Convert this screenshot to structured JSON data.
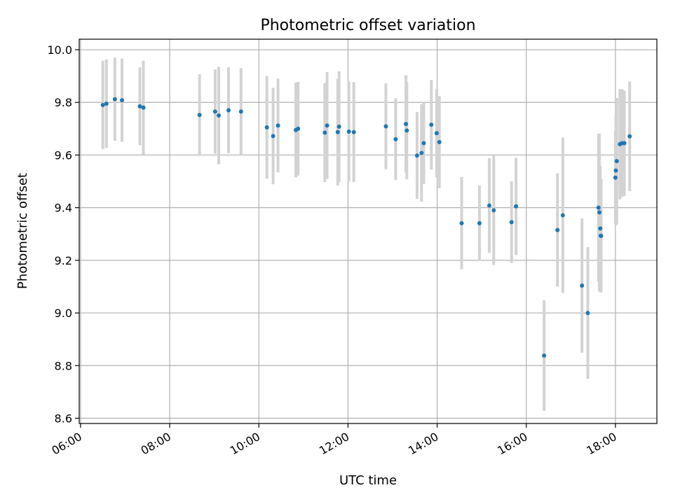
{
  "chart_data": {
    "type": "scatter",
    "title": "Photometric offset variation",
    "xlabel": "UTC time",
    "ylabel": "Photometric offset",
    "xlim": [
      5.97,
      18.93
    ],
    "ylim": [
      8.58,
      10.04
    ],
    "xticks": [
      6,
      8,
      10,
      12,
      14,
      16,
      18
    ],
    "xtick_labels": [
      "06:00",
      "08:00",
      "10:00",
      "12:00",
      "14:00",
      "16:00",
      "18:00"
    ],
    "yticks": [
      8.6,
      8.8,
      9.0,
      9.2,
      9.4,
      9.6,
      9.8,
      10.0
    ],
    "ytick_labels": [
      "8.6",
      "8.8",
      "9.0",
      "9.2",
      "9.4",
      "9.6",
      "9.8",
      "10.0"
    ],
    "grid": true,
    "point_color": "#1f77b4",
    "errorbar_color": "#d3d3d3",
    "x": [
      6.5,
      6.58,
      6.77,
      6.93,
      7.33,
      7.41,
      8.67,
      9.02,
      9.1,
      9.32,
      9.6,
      10.18,
      10.32,
      10.43,
      10.83,
      10.88,
      11.48,
      11.53,
      11.77,
      11.8,
      12.02,
      12.13,
      12.85,
      13.07,
      13.3,
      13.32,
      13.55,
      13.65,
      13.7,
      13.87,
      13.99,
      14.05,
      14.55,
      14.95,
      15.17,
      15.27,
      15.67,
      15.77,
      16.4,
      16.7,
      16.82,
      17.25,
      17.38,
      17.62,
      17.64,
      17.66,
      17.67,
      17.68,
      18.0,
      18.01,
      18.03,
      18.1,
      18.15,
      18.2,
      18.32
    ],
    "y": [
      9.79,
      9.795,
      9.812,
      9.808,
      9.785,
      9.78,
      9.752,
      9.765,
      9.75,
      9.77,
      9.765,
      9.705,
      9.672,
      9.712,
      9.695,
      9.7,
      9.685,
      9.712,
      9.687,
      9.708,
      9.689,
      9.687,
      9.709,
      9.66,
      9.718,
      9.693,
      9.598,
      9.608,
      9.645,
      9.715,
      9.683,
      9.649,
      9.341,
      9.341,
      9.408,
      9.39,
      9.345,
      9.405,
      8.838,
      9.315,
      9.371,
      9.104,
      9.0,
      9.4,
      9.382,
      9.321,
      9.293,
      9.293,
      9.514,
      9.541,
      9.577,
      9.641,
      9.645,
      9.645,
      9.671
    ],
    "yerr": [
      0.168,
      0.168,
      0.158,
      0.158,
      0.148,
      0.178,
      0.155,
      0.16,
      0.185,
      0.163,
      0.165,
      0.195,
      0.183,
      0.178,
      0.18,
      0.178,
      0.188,
      0.203,
      0.203,
      0.21,
      0.19,
      0.19,
      0.163,
      0.155,
      0.185,
      0.185,
      0.165,
      0.185,
      0.155,
      0.17,
      0.168,
      0.175,
      0.175,
      0.143,
      0.18,
      0.208,
      0.155,
      0.185,
      0.21,
      0.215,
      0.295,
      0.255,
      0.25,
      0.28,
      0.3,
      0.238,
      0.215,
      0.215,
      0.178,
      0.208,
      0.24,
      0.21,
      0.205,
      0.2,
      0.208
    ]
  }
}
